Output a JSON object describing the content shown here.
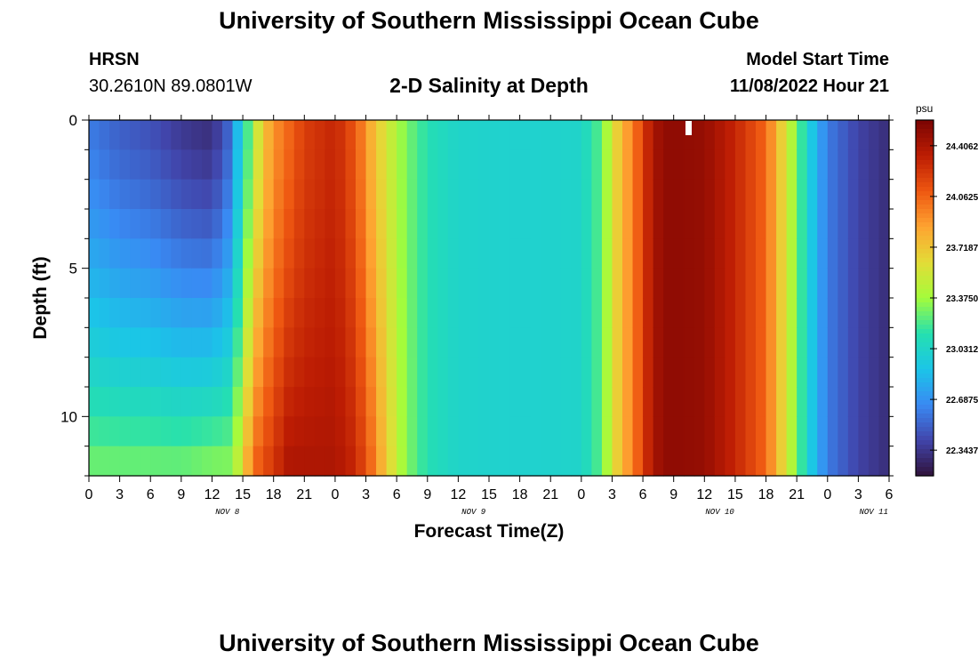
{
  "page": {
    "title": "University of Southern Mississippi Ocean Cube",
    "title_repeat": "University of Southern Mississippi Ocean Cube",
    "station": {
      "id": "HRSN",
      "coords": "30.2610N  89.0801W"
    },
    "model_start": {
      "label": "Model Start Time",
      "value": "11/08/2022 Hour 21"
    }
  },
  "chart_data": {
    "type": "heatmap",
    "title": "2-D Salinity at Depth",
    "xlabel": "Forecast Time(Z)",
    "ylabel": "Depth (ft)",
    "x_ticks": [
      "0",
      "3",
      "6",
      "9",
      "12",
      "15",
      "18",
      "21",
      "0",
      "3",
      "6",
      "9",
      "12",
      "15",
      "18",
      "21",
      "0",
      "3",
      "6",
      "9",
      "12",
      "15",
      "18",
      "21",
      "0",
      "3",
      "6"
    ],
    "day_labels": [
      {
        "label": "NOV 8",
        "hour": 13.5
      },
      {
        "label": "NOV 9",
        "hour": 37.5
      },
      {
        "label": "NOV 10",
        "hour": 61.5
      },
      {
        "label": "NOV 11",
        "hour": 76.5
      }
    ],
    "xlim_hours": [
      0,
      78
    ],
    "y_ticks": [
      "0",
      "5",
      "10"
    ],
    "ylim_ft": [
      0,
      12
    ],
    "colorbar": {
      "unit": "psu",
      "ticks": [
        "24.4062",
        "24.0625",
        "23.7187",
        "23.3750",
        "23.0312",
        "22.6875",
        "22.3437"
      ],
      "range": [
        22.17,
        24.58
      ]
    },
    "profile_hours": [
      0,
      3,
      6,
      9,
      12,
      13.5,
      14.5,
      15.5,
      16.5,
      17.5,
      18.5,
      19.5,
      21,
      24,
      26,
      27.5,
      29,
      30.5,
      32,
      33.5,
      36,
      42,
      48,
      50,
      51,
      52,
      53,
      54,
      55,
      56,
      57.5,
      60,
      63,
      66,
      67,
      68,
      69,
      70,
      71,
      72,
      75,
      78
    ],
    "surface_psu": [
      22.6,
      22.5,
      22.45,
      22.35,
      22.3,
      22.5,
      22.85,
      23.2,
      23.55,
      23.8,
      23.95,
      24.05,
      24.2,
      24.3,
      24.1,
      23.8,
      23.55,
      23.35,
      23.2,
      23.1,
      23.02,
      23.0,
      23.02,
      23.25,
      23.55,
      23.8,
      23.95,
      24.2,
      24.4,
      24.5,
      24.5,
      24.48,
      24.3,
      24.05,
      23.8,
      23.55,
      23.3,
      23.02,
      22.8,
      22.6,
      22.4,
      22.3
    ],
    "bottom_psu": [
      23.3,
      23.3,
      23.3,
      23.3,
      23.35,
      23.35,
      23.5,
      23.85,
      24.1,
      24.2,
      24.3,
      24.4,
      24.4,
      24.4,
      24.3,
      24.05,
      23.7,
      23.4,
      23.2,
      23.1,
      23.02,
      23.0,
      23.02,
      23.25,
      23.55,
      23.8,
      23.95,
      24.2,
      24.4,
      24.5,
      24.5,
      24.48,
      24.3,
      24.05,
      23.8,
      23.55,
      23.3,
      23.02,
      22.8,
      22.6,
      22.4,
      22.3
    ],
    "legend": "none",
    "grid": false
  }
}
